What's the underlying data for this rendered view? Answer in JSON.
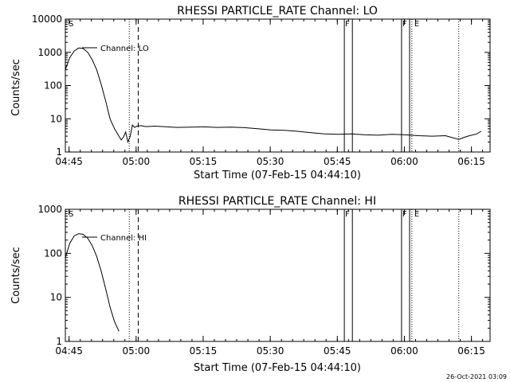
{
  "chart_data": [
    {
      "type": "line",
      "title": "RHESSI PARTICLE_RATE Channel: LO",
      "xlabel": "Start Time (07-Feb-15 04:44:10)",
      "ylabel": "Counts/sec",
      "yscale": "log",
      "xlim_minutes": [
        0,
        95
      ],
      "ylim": [
        1,
        10000
      ],
      "x_tick_labels": [
        "04:45",
        "05:00",
        "05:15",
        "05:30",
        "05:45",
        "06:00",
        "06:15"
      ],
      "y_tick_labels": [
        "1",
        "10",
        "100",
        "1000",
        "10000"
      ],
      "series": [
        {
          "name": "Channel: LO",
          "x": [
            0,
            1,
            2,
            3,
            4,
            5,
            6,
            7,
            8,
            9,
            10,
            11,
            12,
            12.5,
            13,
            13.5,
            14,
            14.5,
            15,
            15.5,
            16,
            17,
            18,
            20,
            22,
            25,
            28,
            31,
            34,
            37,
            40,
            43,
            46,
            49,
            52,
            55,
            58,
            61,
            64,
            67,
            70,
            73,
            76,
            79,
            82,
            85,
            88,
            90,
            92,
            93
          ],
          "y": [
            300,
            700,
            1100,
            1350,
            1300,
            1000,
            600,
            300,
            110,
            35,
            10,
            5,
            3,
            2.3,
            2.8,
            4,
            2,
            3,
            6.5,
            5.5,
            6,
            6.2,
            5.8,
            6,
            5.8,
            5.5,
            5.6,
            5.7,
            5.5,
            5.6,
            5.4,
            5,
            4.6,
            4.5,
            4.2,
            3.8,
            3.5,
            3.4,
            3.5,
            3.3,
            3.2,
            3.4,
            3.3,
            3.1,
            3,
            3.1,
            2.4,
            3,
            3.5,
            4.2
          ]
        }
      ],
      "event_labels": [
        "S",
        "F",
        "F",
        "E"
      ]
    },
    {
      "type": "line",
      "title": "RHESSI PARTICLE_RATE Channel: HI",
      "xlabel": "Start Time (07-Feb-15 04:44:10)",
      "ylabel": "Counts/sec",
      "yscale": "log",
      "xlim_minutes": [
        0,
        95
      ],
      "ylim": [
        1,
        1000
      ],
      "x_tick_labels": [
        "04:45",
        "05:00",
        "05:15",
        "05:30",
        "05:45",
        "06:00",
        "06:15"
      ],
      "y_tick_labels": [
        "1",
        "10",
        "100",
        "1000"
      ],
      "series": [
        {
          "name": "Channel: HI",
          "x": [
            0,
            1,
            2,
            3,
            4,
            5,
            6,
            7,
            8,
            9,
            10,
            11,
            12
          ],
          "y": [
            80,
            170,
            250,
            280,
            270,
            220,
            150,
            85,
            40,
            16,
            6,
            2.8,
            1.7
          ]
        }
      ],
      "event_labels": [
        "S",
        "F",
        "F",
        "E"
      ]
    }
  ],
  "timestamp": "26-Oct-2021 03:09"
}
